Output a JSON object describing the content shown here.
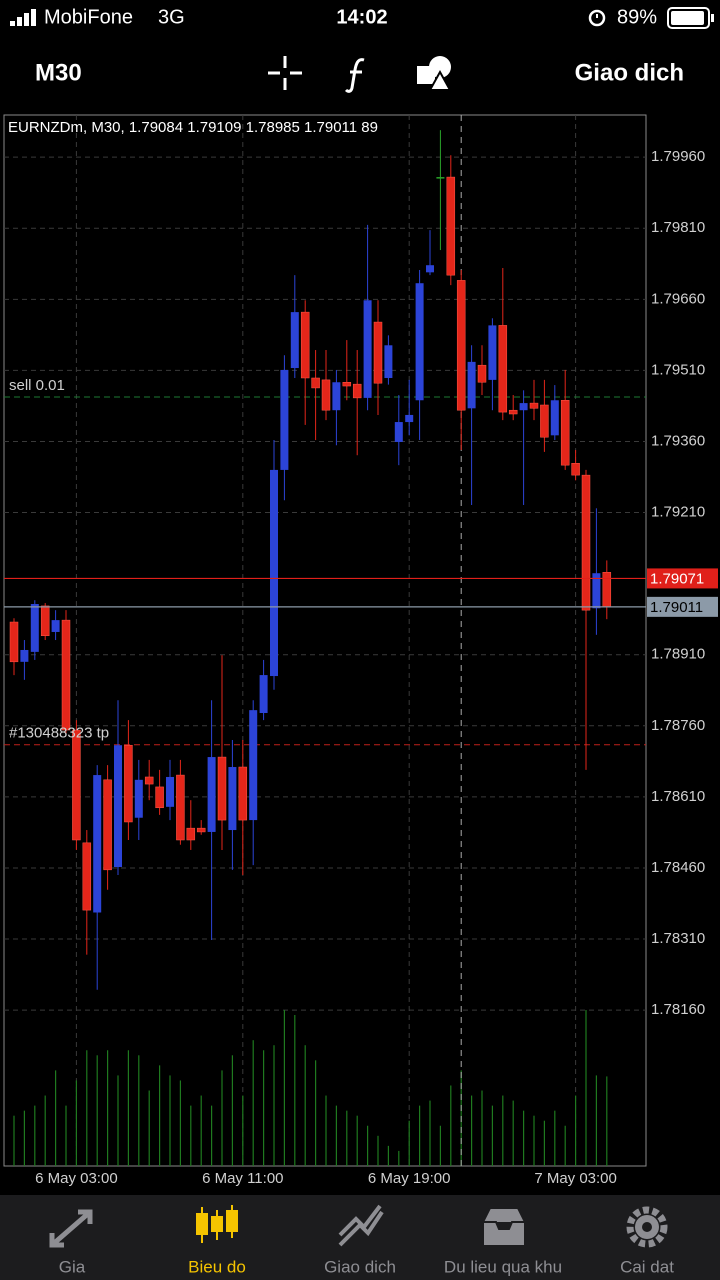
{
  "status_bar": {
    "carrier": "MobiFone",
    "network": "3G",
    "time": "14:02",
    "battery": "89%"
  },
  "toolbar": {
    "timeframe": "M30",
    "trade_button": "Giao dich"
  },
  "chart_data": {
    "type": "candlestick",
    "info": "EURNZDm, M30, 1.79084 1.79109 1.78985 1.79011 89",
    "open": [
      1.78979,
      1.78895,
      1.78916,
      1.79013,
      1.78958,
      1.78983,
      1.78751,
      1.78513,
      1.78366,
      1.78646,
      1.78462,
      1.78719,
      1.78566,
      1.78652,
      1.78631,
      1.78589,
      1.78656,
      1.78544,
      1.78544,
      1.78536,
      1.78694,
      1.7854,
      1.78673,
      1.78561,
      1.78787,
      1.78865,
      1.793,
      1.79515,
      1.79633,
      1.79494,
      1.7949,
      1.79426,
      1.79485,
      1.79481,
      1.79452,
      1.79612,
      1.79494,
      1.79359,
      1.79401,
      1.79447,
      1.79717,
      1.79918,
      1.79918,
      1.797,
      1.7943,
      1.79521,
      1.7949,
      1.79605,
      1.79426,
      1.79426,
      1.79441,
      1.79437,
      1.79373,
      1.79447,
      1.79314,
      1.79289,
      1.79008,
      1.79084
    ],
    "high": [
      1.78987,
      1.78941,
      1.79025,
      1.79019,
      1.79004,
      1.79004,
      1.78772,
      1.7854,
      1.78677,
      1.78677,
      1.78814,
      1.78772,
      1.78688,
      1.78688,
      1.78667,
      1.78688,
      1.78688,
      1.78603,
      1.78561,
      1.78814,
      1.78909,
      1.7873,
      1.7873,
      1.78814,
      1.78899,
      1.79363,
      1.79542,
      1.79711,
      1.79658,
      1.79553,
      1.79553,
      1.79511,
      1.79574,
      1.79553,
      1.79817,
      1.79658,
      1.79584,
      1.79458,
      1.7949,
      1.79722,
      1.79806,
      1.80017,
      1.79964,
      1.79722,
      1.79563,
      1.79563,
      1.7962,
      1.79726,
      1.79458,
      1.79468,
      1.7949,
      1.7949,
      1.79479,
      1.79511,
      1.79342,
      1.793,
      1.79219,
      1.79109
    ],
    "low": [
      1.78867,
      1.78857,
      1.78899,
      1.78941,
      1.78941,
      1.78741,
      1.78498,
      1.78277,
      1.78203,
      1.78414,
      1.78445,
      1.78519,
      1.78519,
      1.78603,
      1.78572,
      1.78561,
      1.78509,
      1.78498,
      1.7853,
      1.78308,
      1.78498,
      1.78456,
      1.78445,
      1.78466,
      1.78772,
      1.78836,
      1.79236,
      1.79494,
      1.79395,
      1.79363,
      1.79405,
      1.79352,
      1.79447,
      1.79331,
      1.79426,
      1.79416,
      1.7948,
      1.7931,
      1.79373,
      1.79363,
      1.79711,
      1.79764,
      1.7969,
      1.79342,
      1.79226,
      1.79458,
      1.79426,
      1.79405,
      1.79405,
      1.79226,
      1.79405,
      1.79338,
      1.79363,
      1.793,
      1.79278,
      1.78667,
      1.78952,
      1.78985
    ],
    "close": [
      1.78895,
      1.7892,
      1.79017,
      1.7895,
      1.78983,
      1.78751,
      1.78519,
      1.78371,
      1.78656,
      1.78456,
      1.78719,
      1.78557,
      1.78646,
      1.78637,
      1.78587,
      1.78652,
      1.78519,
      1.78519,
      1.78536,
      1.78694,
      1.78561,
      1.78673,
      1.78561,
      1.78793,
      1.78867,
      1.793,
      1.79511,
      1.79633,
      1.79494,
      1.79473,
      1.79426,
      1.79485,
      1.79477,
      1.79452,
      1.79658,
      1.79483,
      1.79563,
      1.79401,
      1.79416,
      1.79694,
      1.79732,
      1.79918,
      1.79711,
      1.79426,
      1.79528,
      1.79485,
      1.79605,
      1.79422,
      1.79418,
      1.79441,
      1.7943,
      1.79369,
      1.79447,
      1.7931,
      1.79289,
      1.79004,
      1.79082,
      1.79011
    ],
    "volume": [
      50,
      55,
      60,
      70,
      95,
      60,
      85,
      115,
      110,
      115,
      90,
      115,
      110,
      75,
      100,
      90,
      85,
      60,
      70,
      60,
      95,
      110,
      70,
      125,
      115,
      120,
      155,
      150,
      120,
      105,
      70,
      60,
      55,
      50,
      40,
      30,
      20,
      15,
      45,
      60,
      65,
      40,
      80,
      95,
      70,
      75,
      60,
      70,
      65,
      55,
      50,
      45,
      55,
      40,
      70,
      155,
      90,
      89
    ],
    "up_color": "#2c44d8",
    "down_color": "#e4261a",
    "doji_color": "#2aa52a",
    "volume_color": "#1f7a1f",
    "ylim": [
      1.77831,
      1.80049
    ],
    "yticks": [
      {
        "value": 1.7996,
        "label": "1.79960"
      },
      {
        "value": 1.7981,
        "label": "1.79810"
      },
      {
        "value": 1.7966,
        "label": "1.79660"
      },
      {
        "value": 1.7951,
        "label": "1.79510"
      },
      {
        "value": 1.7936,
        "label": "1.79360"
      },
      {
        "value": 1.7921,
        "label": "1.79210"
      },
      {
        "value": 1.7891,
        "label": "1.78910"
      },
      {
        "value": 1.7876,
        "label": "1.78760"
      },
      {
        "value": 1.7861,
        "label": "1.78610"
      },
      {
        "value": 1.7846,
        "label": "1.78460"
      },
      {
        "value": 1.7831,
        "label": "1.78310"
      },
      {
        "value": 1.7816,
        "label": "1.78160"
      }
    ],
    "xticks": [
      {
        "value": 6,
        "label": "6 May 03:00"
      },
      {
        "value": 22,
        "label": "6 May 11:00"
      },
      {
        "value": 38,
        "label": "6 May 19:00"
      },
      {
        "value": 54,
        "label": "7 May 03:00"
      }
    ],
    "grid": true,
    "cursor_index": 43,
    "levels": [
      {
        "label": "sell 0.01",
        "value": 1.79454,
        "color": "#1e7a34"
      },
      {
        "label": "#130488323 tp",
        "value": 1.7872,
        "color": "#c0201a"
      }
    ],
    "bid": {
      "value": 1.79071,
      "color": "#e0201a"
    },
    "ask": {
      "value": 1.79011,
      "color": "#8c9aa8"
    }
  },
  "tabs": [
    {
      "label": "Gia"
    },
    {
      "label": "Bieu do"
    },
    {
      "label": "Giao dich"
    },
    {
      "label": "Du lieu qua khu"
    },
    {
      "label": "Cai dat"
    }
  ]
}
